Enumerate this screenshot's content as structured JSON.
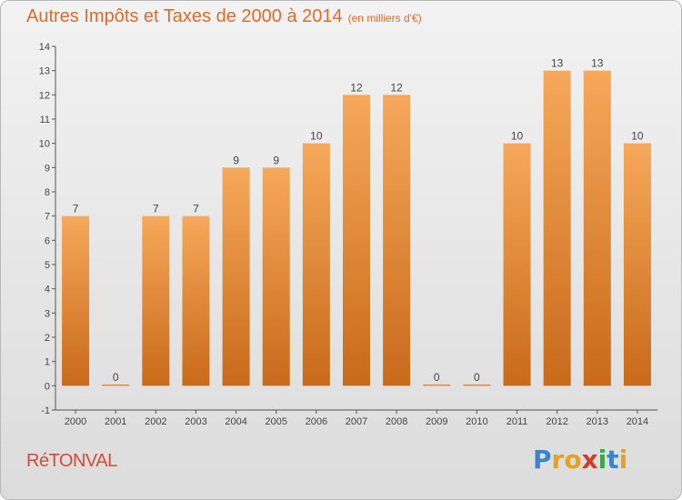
{
  "header": {
    "title": "Autres Impôts et Taxes de 2000 à 2014",
    "unit": "(en milliers d'€)"
  },
  "footer": {
    "commune": "RéTONVAL",
    "logo": "Proxiti"
  },
  "colors": {
    "bar_light": "#f7a85a",
    "bar_dark": "#c86a1a",
    "title": "#e06a2a",
    "commune": "#d44c38"
  },
  "chart_data": {
    "type": "bar",
    "title": "Autres Impôts et Taxes de 2000 à 2014",
    "xlabel": "",
    "ylabel": "",
    "categories": [
      "2000",
      "2001",
      "2002",
      "2003",
      "2004",
      "2005",
      "2006",
      "2007",
      "2008",
      "2009",
      "2010",
      "2011",
      "2012",
      "2013",
      "2014"
    ],
    "values": [
      7,
      0,
      7,
      7,
      9,
      9,
      10,
      12,
      12,
      0,
      0,
      10,
      13,
      13,
      10
    ],
    "ylim": [
      -1,
      14
    ],
    "yticks": [
      "-1",
      "0",
      "1",
      "2",
      "3",
      "4",
      "5",
      "6",
      "7",
      "8",
      "9",
      "10",
      "11",
      "12",
      "13",
      "14"
    ],
    "grid": false
  }
}
